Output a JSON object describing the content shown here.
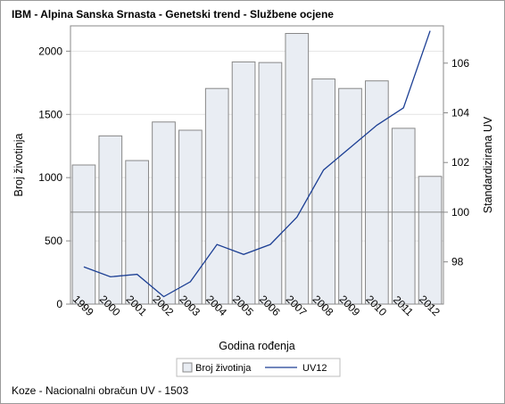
{
  "title": "IBM - Alpina Sanska Srnasta - Genetski trend - Službene ocjene",
  "footnote": "Koze - Nacionalni obračun UV - 1503",
  "chart_data": {
    "type": "bar",
    "categories": [
      "1999",
      "2000",
      "2001",
      "2002",
      "2003",
      "2004",
      "2005",
      "2006",
      "2007",
      "2008",
      "2009",
      "2010",
      "2011",
      "2012"
    ],
    "series": [
      {
        "name": "Broj životinja",
        "type": "bar",
        "axis": "left",
        "values": [
          1100,
          1330,
          1135,
          1440,
          1375,
          1705,
          1915,
          1910,
          2140,
          1780,
          1705,
          1765,
          1390,
          1010
        ]
      },
      {
        "name": "UV12",
        "type": "line",
        "axis": "right",
        "values": [
          97.8,
          97.4,
          97.5,
          96.6,
          97.2,
          98.7,
          98.3,
          98.7,
          99.8,
          101.7,
          102.6,
          103.5,
          104.2,
          107.3
        ]
      }
    ],
    "xlabel": "Godina rođenja",
    "ylabel": "Broj životinja",
    "y2label": "Standardizirana UV",
    "ylim": [
      0,
      2200
    ],
    "yticks": [
      0,
      500,
      1000,
      1500,
      2000
    ],
    "y2lim": [
      96.3,
      107.5
    ],
    "y2ticks": [
      98,
      100,
      102,
      104,
      106
    ],
    "reference_line_y2": 100,
    "grid": true,
    "legend_position": "bottom-center",
    "colors": {
      "bar_fill": "#e9edf3",
      "bar_stroke": "#888888",
      "line": "#1c3f94",
      "grid": "#e4e4e4",
      "reference": "#888888",
      "axis": "#888888"
    }
  }
}
